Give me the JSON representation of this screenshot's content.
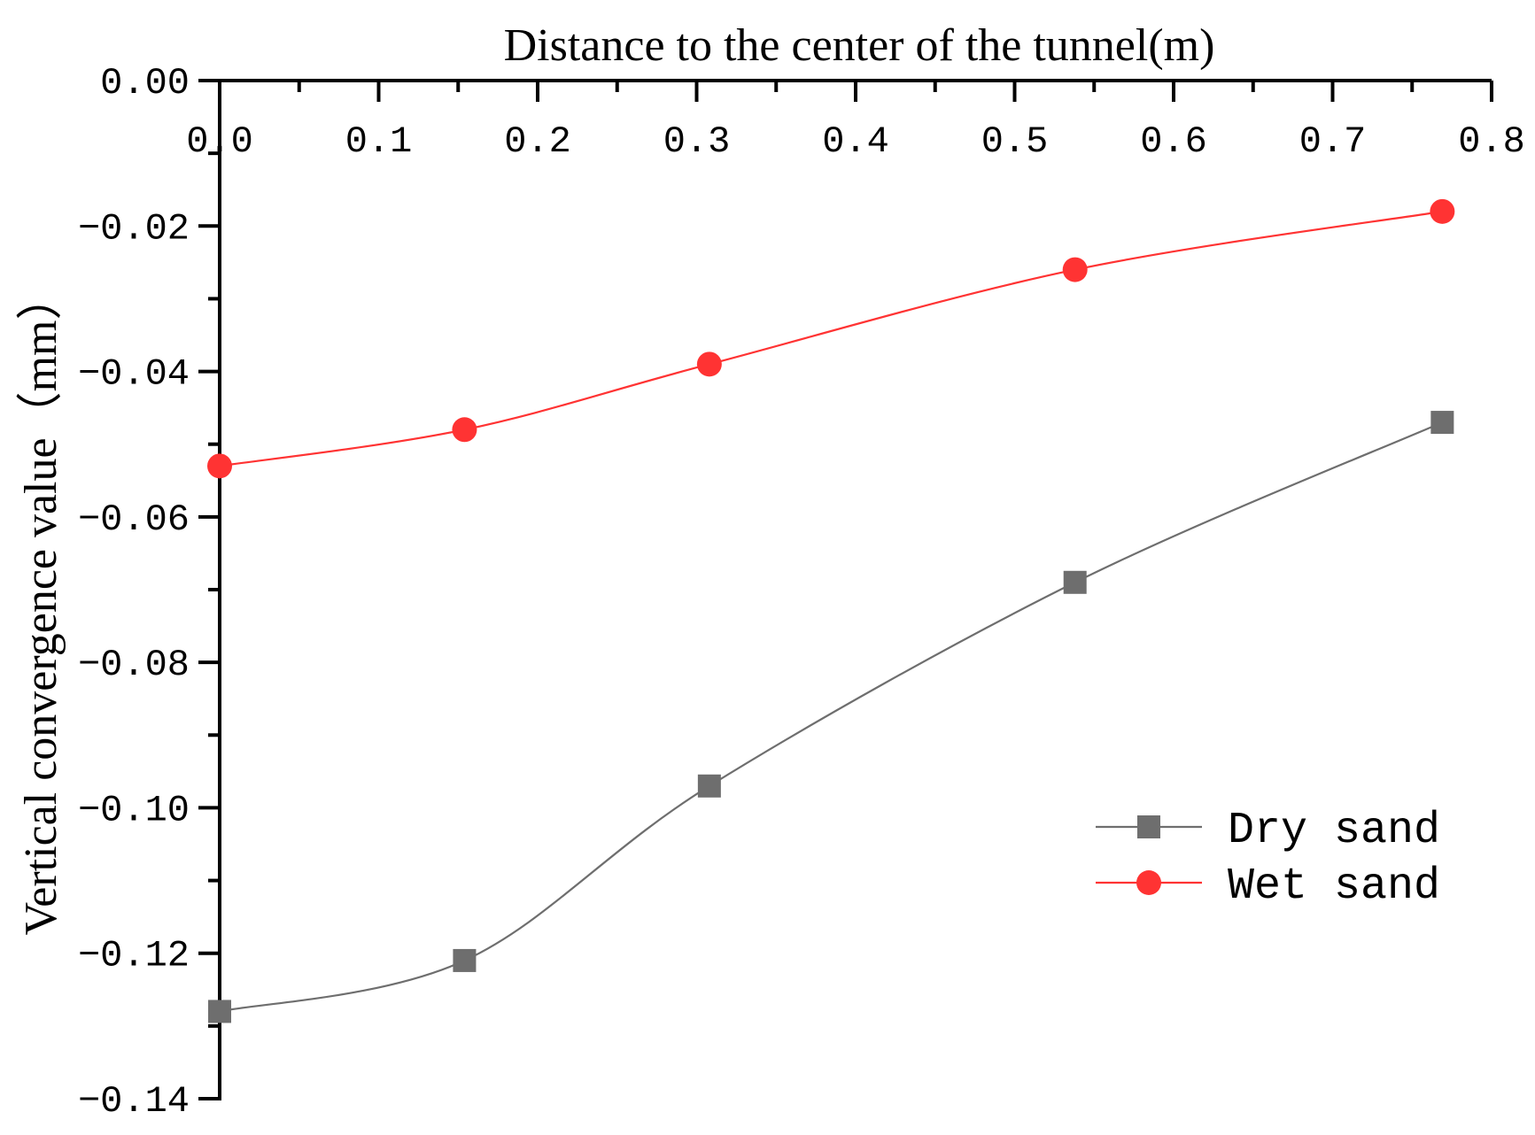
{
  "chart_data": {
    "type": "line",
    "title": "Distance to the center of the tunnel(m)",
    "xlabel": "Distance to the center of the tunnel(m)",
    "ylabel": "Vertical convergence value（mm）",
    "xlim": [
      0,
      0.8
    ],
    "ylim": [
      -0.14,
      0.0
    ],
    "x_axis_position": "top",
    "grid": false,
    "legend_position": "bottom-right",
    "x_ticks": [
      "0.0",
      "0.1",
      "0.2",
      "0.3",
      "0.4",
      "0.5",
      "0.6",
      "0.7",
      "0.8"
    ],
    "x_tick_values": [
      0.0,
      0.1,
      0.2,
      0.3,
      0.4,
      0.5,
      0.6,
      0.7,
      0.8
    ],
    "y_ticks": [
      "0.00",
      "−0.02",
      "−0.04",
      "−0.06",
      "−0.08",
      "−0.10",
      "−0.12",
      "−0.14"
    ],
    "y_tick_values": [
      0.0,
      -0.02,
      -0.04,
      -0.06,
      -0.08,
      -0.1,
      -0.12,
      -0.14
    ],
    "series": [
      {
        "name": "Dry sand",
        "color": "#6e6e6e",
        "marker": "square",
        "x": [
          0.0,
          0.154,
          0.308,
          0.538,
          0.769
        ],
        "y": [
          -0.128,
          -0.121,
          -0.097,
          -0.069,
          -0.047
        ]
      },
      {
        "name": "Wet sand",
        "color": "#ff3333",
        "marker": "circle",
        "x": [
          0.0,
          0.154,
          0.308,
          0.538,
          0.769
        ],
        "y": [
          -0.053,
          -0.048,
          -0.039,
          -0.026,
          -0.018
        ]
      }
    ]
  }
}
